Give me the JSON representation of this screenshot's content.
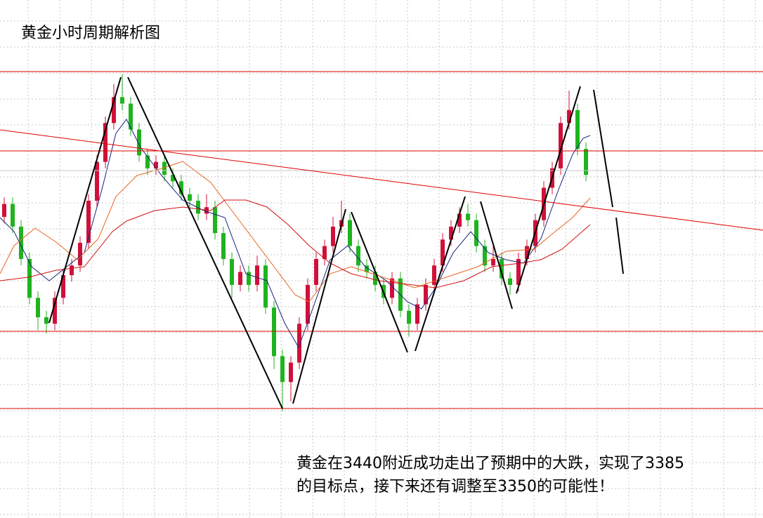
{
  "chart_data": {
    "type": "candlestick",
    "title": "黄金小时周期解析图",
    "annotation": [
      "黄金在3440附近成功走出了预期中的大跌，实现了3385",
      "的目标点，接下来还有调整至3350的可能性！"
    ],
    "ylim": [
      3300,
      3460
    ],
    "grid": true,
    "up_color": "#d0103a",
    "down_color": "#1fb31f",
    "open": [
      3393,
      3397,
      3390,
      3380,
      3368,
      3362,
      3360,
      3368,
      3375,
      3378,
      3385,
      3398,
      3410,
      3422,
      3430,
      3428,
      3420,
      3412,
      3408,
      3410,
      3406,
      3404,
      3400,
      3398,
      3394,
      3396,
      3388,
      3380,
      3372,
      3376,
      3372,
      3378,
      3365,
      3350,
      3342,
      3348,
      3360,
      3372,
      3380,
      3384,
      3390,
      3392,
      3384,
      3378,
      3376,
      3372,
      3368,
      3374,
      3364,
      3360,
      3366,
      3372,
      3378,
      3386,
      3390,
      3394,
      3392,
      3384,
      3378,
      3380,
      3374,
      3372,
      3380,
      3384,
      3392,
      3402,
      3408,
      3422,
      3426,
      3414
    ],
    "high": [
      3399,
      3399,
      3392,
      3382,
      3370,
      3364,
      3370,
      3377,
      3380,
      3387,
      3400,
      3412,
      3424,
      3434,
      3437,
      3430,
      3422,
      3414,
      3412,
      3412,
      3408,
      3406,
      3402,
      3400,
      3400,
      3398,
      3390,
      3382,
      3378,
      3378,
      3381,
      3380,
      3367,
      3352,
      3350,
      3362,
      3374,
      3382,
      3386,
      3393,
      3398,
      3394,
      3386,
      3380,
      3378,
      3374,
      3376,
      3376,
      3366,
      3368,
      3374,
      3380,
      3388,
      3392,
      3396,
      3397,
      3394,
      3386,
      3384,
      3382,
      3376,
      3382,
      3386,
      3394,
      3404,
      3410,
      3424,
      3432,
      3428,
      3416
    ],
    "low": [
      3391,
      3388,
      3378,
      3366,
      3358,
      3357,
      3358,
      3366,
      3373,
      3376,
      3383,
      3396,
      3408,
      3420,
      3426,
      3418,
      3410,
      3406,
      3406,
      3404,
      3402,
      3398,
      3396,
      3392,
      3392,
      3386,
      3378,
      3368,
      3370,
      3370,
      3370,
      3363,
      3346,
      3333,
      3336,
      3346,
      3358,
      3370,
      3378,
      3382,
      3388,
      3382,
      3376,
      3374,
      3370,
      3366,
      3366,
      3362,
      3356,
      3358,
      3364,
      3370,
      3376,
      3384,
      3388,
      3390,
      3382,
      3376,
      3376,
      3372,
      3369,
      3370,
      3378,
      3382,
      3390,
      3400,
      3406,
      3420,
      3412,
      3404
    ],
    "close": [
      3397,
      3390,
      3380,
      3368,
      3362,
      3360,
      3368,
      3375,
      3378,
      3385,
      3398,
      3410,
      3422,
      3430,
      3428,
      3420,
      3412,
      3408,
      3410,
      3406,
      3404,
      3400,
      3398,
      3394,
      3396,
      3388,
      3380,
      3372,
      3376,
      3372,
      3378,
      3365,
      3350,
      3342,
      3348,
      3360,
      3372,
      3380,
      3384,
      3390,
      3392,
      3384,
      3378,
      3376,
      3372,
      3368,
      3374,
      3364,
      3360,
      3366,
      3372,
      3378,
      3386,
      3390,
      3394,
      3392,
      3384,
      3378,
      3380,
      3374,
      3372,
      3380,
      3384,
      3392,
      3402,
      3408,
      3422,
      3426,
      3414,
      3406
    ]
  }
}
